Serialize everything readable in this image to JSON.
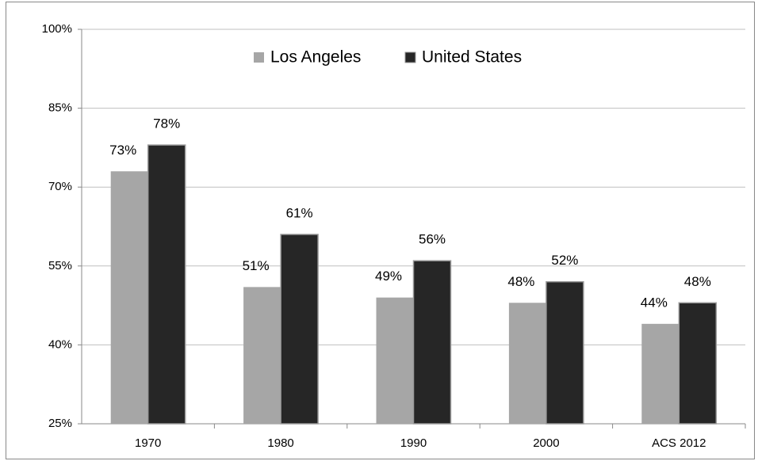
{
  "chart_data": {
    "type": "bar",
    "categories": [
      "1970",
      "1980",
      "1990",
      "2000",
      "ACS 2012"
    ],
    "series": [
      {
        "name": "Los Angeles",
        "color": "#a6a6a6",
        "values": [
          73,
          51,
          49,
          48,
          44
        ],
        "value_labels": [
          "73%",
          "51%",
          "49%",
          "48%",
          "44%"
        ]
      },
      {
        "name": "United States",
        "color": "#262626",
        "values": [
          78,
          61,
          56,
          52,
          48
        ],
        "value_labels": [
          "78%",
          "61%",
          "56%",
          "52%",
          "48%"
        ]
      }
    ],
    "ylim": [
      25,
      100
    ],
    "yticks": [
      {
        "value": 25,
        "label": "25%"
      },
      {
        "value": 40,
        "label": "40%"
      },
      {
        "value": 55,
        "label": "55%"
      },
      {
        "value": 70,
        "label": "70%"
      },
      {
        "value": 85,
        "label": "85%"
      },
      {
        "value": 100,
        "label": "100%"
      }
    ],
    "grid": true,
    "legend": "top"
  }
}
